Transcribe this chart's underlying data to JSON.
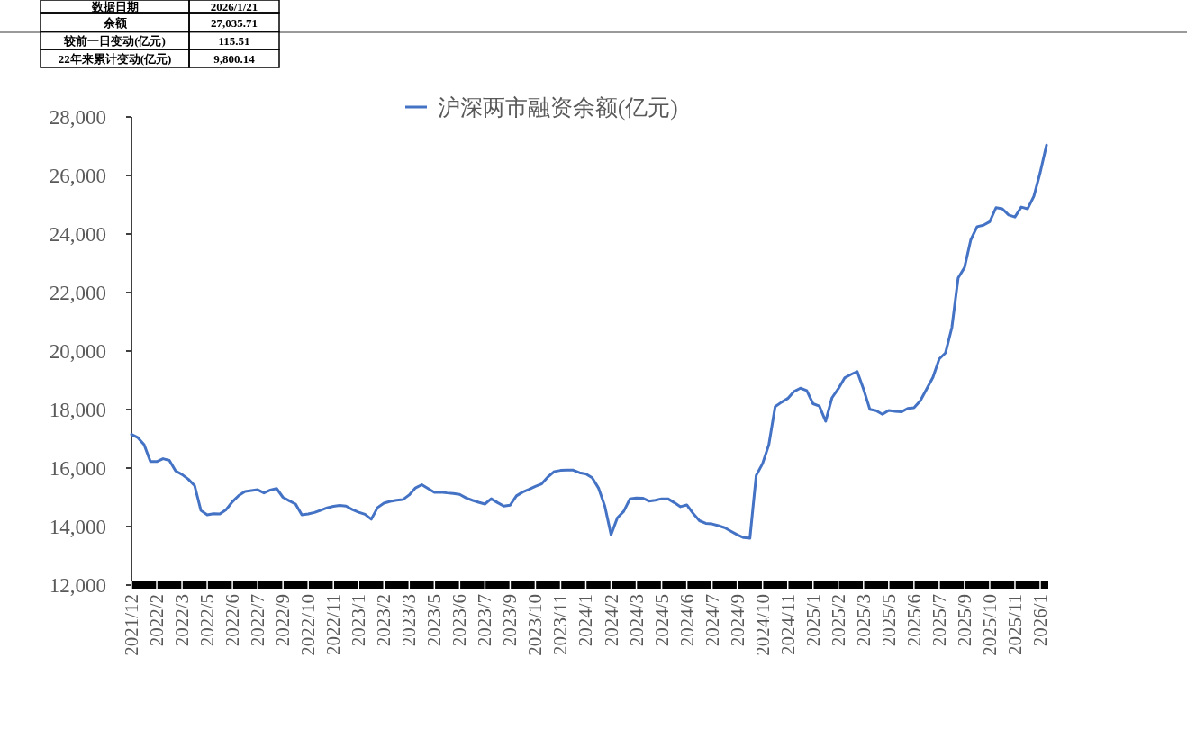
{
  "chart_data": {
    "type": "line",
    "annotations": [
      "数据日期",
      "2026/1/21",
      "余额",
      "27,035.71",
      "较前一日变动(亿元)",
      "115.51",
      "22年来累计变动(亿元)",
      "9,800.14"
    ],
    "categories": [
      "2021/12",
      null,
      null,
      null,
      "2022/2",
      null,
      null,
      null,
      "2022/3",
      null,
      null,
      null,
      "2022/5",
      null,
      null,
      null,
      "2022/6",
      null,
      null,
      null,
      "2022/7",
      null,
      null,
      null,
      "2022/9",
      null,
      null,
      null,
      "2022/10",
      null,
      null,
      null,
      "2022/11",
      null,
      null,
      null,
      "2023/1",
      null,
      null,
      null,
      "2023/2",
      null,
      null,
      null,
      "2023/3",
      null,
      null,
      null,
      "2023/5",
      null,
      null,
      null,
      "2023/6",
      null,
      null,
      null,
      "2023/7",
      null,
      null,
      null,
      "2023/9",
      null,
      null,
      null,
      "2023/10",
      null,
      null,
      null,
      "2023/11",
      null,
      null,
      null,
      "2024/1",
      null,
      null,
      null,
      "2024/2",
      null,
      null,
      null,
      "2024/3",
      null,
      null,
      null,
      "2024/5",
      null,
      null,
      null,
      "2024/6",
      null,
      null,
      null,
      "2024/7",
      null,
      null,
      null,
      "2024/9",
      null,
      null,
      null,
      "2024/10",
      null,
      null,
      null,
      "2024/11",
      null,
      null,
      null,
      "2025/1",
      null,
      null,
      null,
      "2025/2",
      null,
      null,
      null,
      "2025/3",
      null,
      null,
      null,
      "2025/5",
      null,
      null,
      null,
      "2025/6",
      null,
      null,
      null,
      "2025/7",
      null,
      null,
      null,
      "2025/9",
      null,
      null,
      null,
      "2025/10",
      null,
      null,
      null,
      "2025/11",
      null,
      null,
      null,
      "2026/1",
      null
    ],
    "series": [
      {
        "name": "沪深两市融资余额(亿元)",
        "color": "#4472c4",
        "values": [
          17150,
          17040,
          16800,
          16220,
          16220,
          16320,
          16260,
          15900,
          15780,
          15620,
          15400,
          14550,
          14400,
          14440,
          14430,
          14580,
          14850,
          15060,
          15200,
          15230,
          15260,
          15150,
          15250,
          15300,
          15000,
          14880,
          14770,
          14400,
          14430,
          14480,
          14560,
          14640,
          14690,
          14720,
          14700,
          14580,
          14490,
          14420,
          14250,
          14650,
          14800,
          14860,
          14900,
          14920,
          15080,
          15320,
          15430,
          15300,
          15170,
          15180,
          15150,
          15130,
          15100,
          14980,
          14900,
          14830,
          14770,
          14950,
          14820,
          14700,
          14730,
          15050,
          15180,
          15270,
          15370,
          15460,
          15700,
          15880,
          15920,
          15930,
          15930,
          15840,
          15800,
          15670,
          15320,
          14700,
          13720,
          14300,
          14520,
          14950,
          14980,
          14970,
          14870,
          14900,
          14950,
          14950,
          14820,
          14680,
          14740,
          14450,
          14200,
          14110,
          14090,
          14030,
          13960,
          13840,
          13720,
          13620,
          13600,
          15750,
          16150,
          16800,
          18100,
          18250,
          18380,
          18620,
          18730,
          18650,
          18200,
          18120,
          17600,
          18400,
          18710,
          19080,
          19200,
          19300,
          18700,
          18010,
          17960,
          17840,
          17970,
          17940,
          17920,
          18040,
          18060,
          18300,
          18700,
          19100,
          19730,
          19940,
          20800,
          22500,
          22850,
          23800,
          24250,
          24300,
          24420,
          24900,
          24860,
          24650,
          24580,
          24920,
          24860,
          25290,
          26100,
          27036
        ]
      }
    ],
    "ylim": [
      12000,
      28000
    ],
    "yticks": [
      {
        "value": 12000,
        "label": "12,000"
      },
      {
        "value": 14000,
        "label": "14,000"
      },
      {
        "value": 16000,
        "label": "16,000"
      },
      {
        "value": 18000,
        "label": "18,000"
      },
      {
        "value": 20000,
        "label": "20,000"
      },
      {
        "value": 22000,
        "label": "22,000"
      },
      {
        "value": 24000,
        "label": "24,000"
      },
      {
        "value": 26000,
        "label": "26,000"
      },
      {
        "value": 28000,
        "label": "28,000"
      }
    ],
    "legend": "top",
    "grid": false
  }
}
